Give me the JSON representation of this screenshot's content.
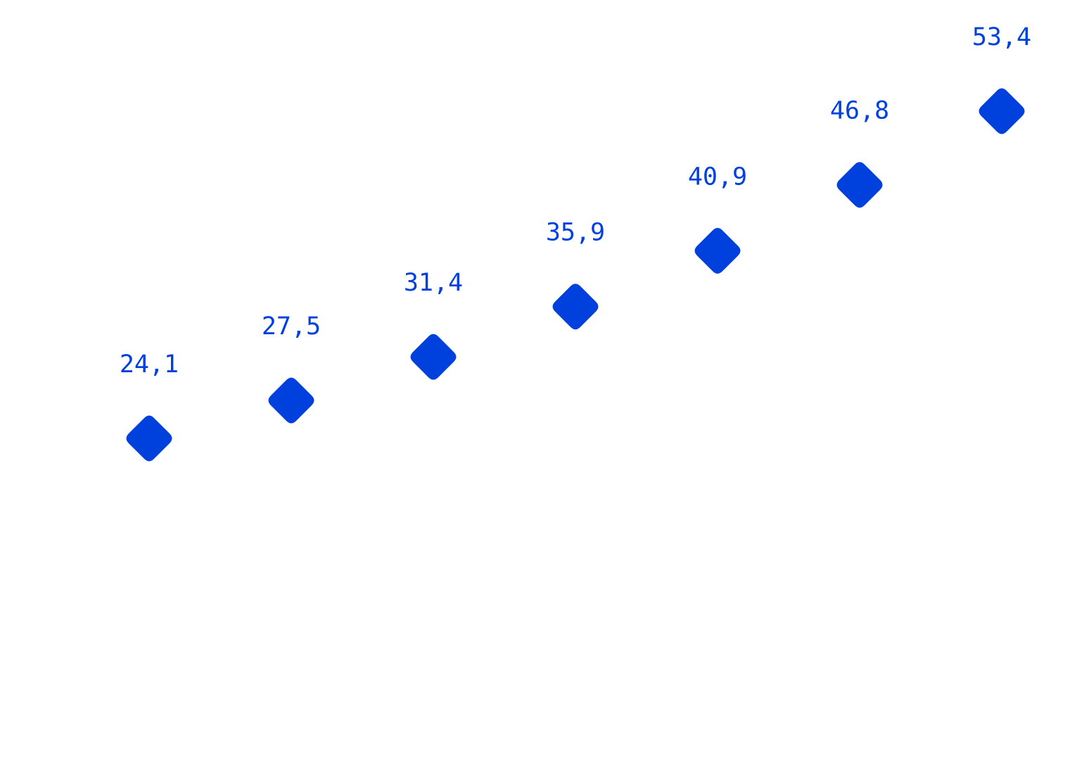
{
  "chart_data": {
    "type": "scatter",
    "title": "",
    "xlabel": "",
    "ylabel": "",
    "x": [
      1,
      2,
      3,
      4,
      5,
      6,
      7
    ],
    "series": [
      {
        "values": [
          24.1,
          27.5,
          31.4,
          35.9,
          40.9,
          46.8,
          53.4
        ],
        "labels": [
          "24,1",
          "27,5",
          "31,4",
          "35,9",
          "40,9",
          "46,8",
          "53,4"
        ],
        "marker": "diamond",
        "color": "#0040dd"
      }
    ],
    "xlim": [
      1,
      7
    ],
    "ylim": [
      24.1,
      53.4
    ],
    "grid": false,
    "axes_visible": false,
    "legend": "none"
  }
}
